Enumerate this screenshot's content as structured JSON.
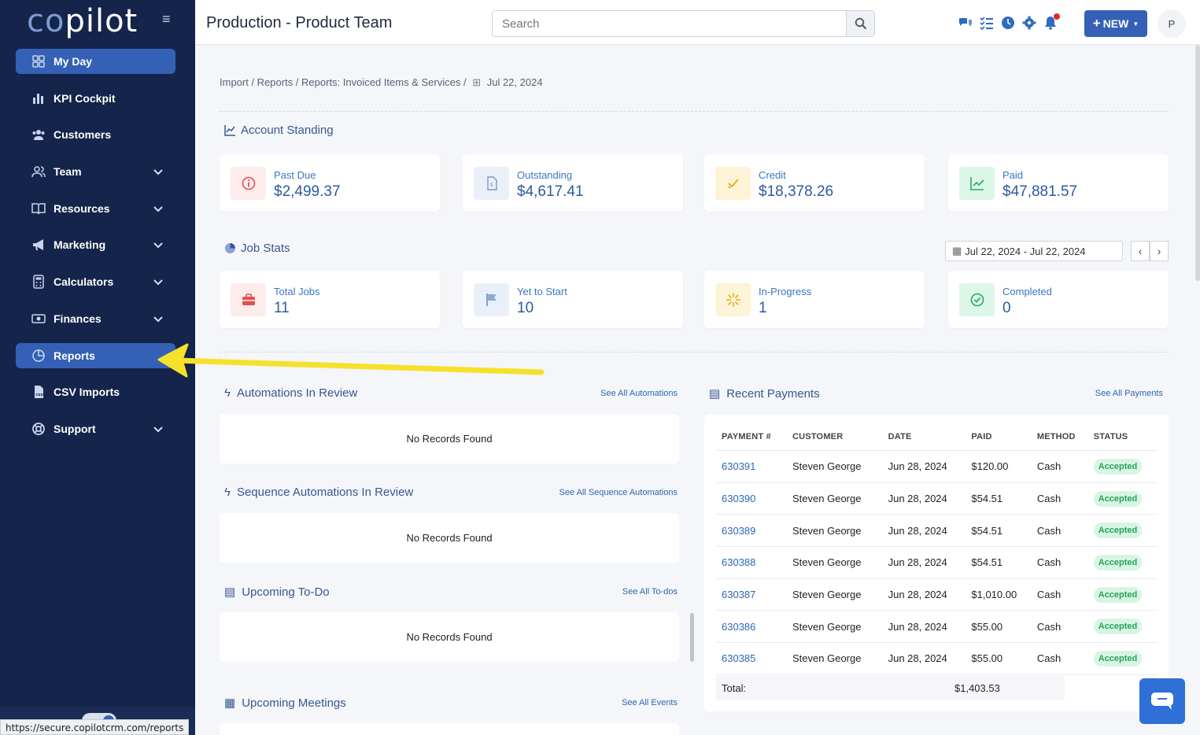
{
  "sidebar": {
    "logo_co": "co",
    "logo_rest": "pilot",
    "menu_glyph": "≡",
    "items": [
      {
        "label": "My Day",
        "icon": "grid-icon",
        "active": true,
        "expandable": false
      },
      {
        "label": "KPI Cockpit",
        "icon": "bar-chart-icon",
        "active": false,
        "expandable": false
      },
      {
        "label": "Customers",
        "icon": "users-icon",
        "active": false,
        "expandable": false
      },
      {
        "label": "Team",
        "icon": "team-icon",
        "active": false,
        "expandable": true
      },
      {
        "label": "Resources",
        "icon": "book-icon",
        "active": false,
        "expandable": true
      },
      {
        "label": "Marketing",
        "icon": "megaphone-icon",
        "active": false,
        "expandable": true
      },
      {
        "label": "Calculators",
        "icon": "calculator-icon",
        "active": false,
        "expandable": true
      },
      {
        "label": "Finances",
        "icon": "money-icon",
        "active": false,
        "expandable": true
      },
      {
        "label": "Reports",
        "icon": "pie-chart-icon",
        "active": true,
        "expandable": false
      },
      {
        "label": "CSV Imports",
        "icon": "file-csv-icon",
        "active": false,
        "expandable": false
      },
      {
        "label": "Support",
        "icon": "lifebuoy-icon",
        "active": false,
        "expandable": true
      }
    ],
    "status_url": "https://secure.copilotcrm.com/reports"
  },
  "header": {
    "title": "Production - Product Team",
    "search_placeholder": "Search",
    "new_label": "NEW",
    "avatar_initial": "P"
  },
  "breadcrumb": {
    "path": "Import / Reports / Reports: Invoiced Items & Services /",
    "date": "Jul 22, 2024"
  },
  "account_standing": {
    "title": "Account Standing",
    "cards": [
      {
        "label": "Past Due",
        "value": "$2,499.37",
        "icon": "alert-circle-icon",
        "bg": "#fdecec",
        "color": "#e35050"
      },
      {
        "label": "Outstanding",
        "value": "$4,617.41",
        "icon": "invoice-icon",
        "bg": "#eaf0fa",
        "color": "#7d96c8"
      },
      {
        "label": "Credit",
        "value": "$18,378.26",
        "icon": "checkmark-icon",
        "bg": "#fdf3d6",
        "color": "#e5b423"
      },
      {
        "label": "Paid",
        "value": "$47,881.57",
        "icon": "trend-up-icon",
        "bg": "#dcf6e7",
        "color": "#2aa864"
      }
    ]
  },
  "job_stats": {
    "title": "Job Stats",
    "date_range": "Jul 22, 2024 - Jul 22, 2024",
    "prev": "‹",
    "next": "›",
    "cards": [
      {
        "label": "Total Jobs",
        "value": "11",
        "icon": "briefcase-icon",
        "bg": "#fdecec",
        "color": "#e35050"
      },
      {
        "label": "Yet to Start",
        "value": "10",
        "icon": "flag-icon",
        "bg": "#eaf0fa",
        "color": "#7d96c8"
      },
      {
        "label": "In-Progress",
        "value": "1",
        "icon": "spinner-icon",
        "bg": "#fdf3d6",
        "color": "#e5b423"
      },
      {
        "label": "Completed",
        "value": "0",
        "icon": "check-circle-icon",
        "bg": "#dcf6e7",
        "color": "#2aa864"
      }
    ]
  },
  "panels": {
    "automations": {
      "title": "Automations In Review",
      "link": "See All Automations",
      "empty": "No Records Found"
    },
    "sequence": {
      "title": "Sequence Automations In Review",
      "link": "See All Sequence Automations",
      "empty": "No Records Found"
    },
    "todo": {
      "title": "Upcoming To-Do",
      "link": "See All To-dos",
      "empty": "No Records Found"
    },
    "meetings": {
      "title": "Upcoming Meetings",
      "link": "See All Events"
    }
  },
  "payments": {
    "title": "Recent Payments",
    "link": "See All Payments",
    "columns": [
      "PAYMENT #",
      "CUSTOMER",
      "DATE",
      "PAID",
      "METHOD",
      "STATUS"
    ],
    "rows": [
      {
        "id": "630391",
        "customer": "Steven George",
        "date": "Jun 28, 2024",
        "paid": "$120.00",
        "method": "Cash",
        "status": "Accepted"
      },
      {
        "id": "630390",
        "customer": "Steven George",
        "date": "Jun 28, 2024",
        "paid": "$54.51",
        "method": "Cash",
        "status": "Accepted"
      },
      {
        "id": "630389",
        "customer": "Steven George",
        "date": "Jun 28, 2024",
        "paid": "$54.51",
        "method": "Cash",
        "status": "Accepted"
      },
      {
        "id": "630388",
        "customer": "Steven George",
        "date": "Jun 28, 2024",
        "paid": "$54.51",
        "method": "Cash",
        "status": "Accepted"
      },
      {
        "id": "630387",
        "customer": "Steven George",
        "date": "Jun 28, 2024",
        "paid": "$1,010.00",
        "method": "Cash",
        "status": "Accepted"
      },
      {
        "id": "630386",
        "customer": "Steven George",
        "date": "Jun 28, 2024",
        "paid": "$55.00",
        "method": "Cash",
        "status": "Accepted"
      },
      {
        "id": "630385",
        "customer": "Steven George",
        "date": "Jun 28, 2024",
        "paid": "$55.00",
        "method": "Cash",
        "status": "Accepted"
      }
    ],
    "total_label": "Total:",
    "total_value": "$1,403.53"
  },
  "colors": {
    "sidebar": "#15244a",
    "accent": "#3461b5",
    "annotation_arrow": "#f5e12b"
  }
}
